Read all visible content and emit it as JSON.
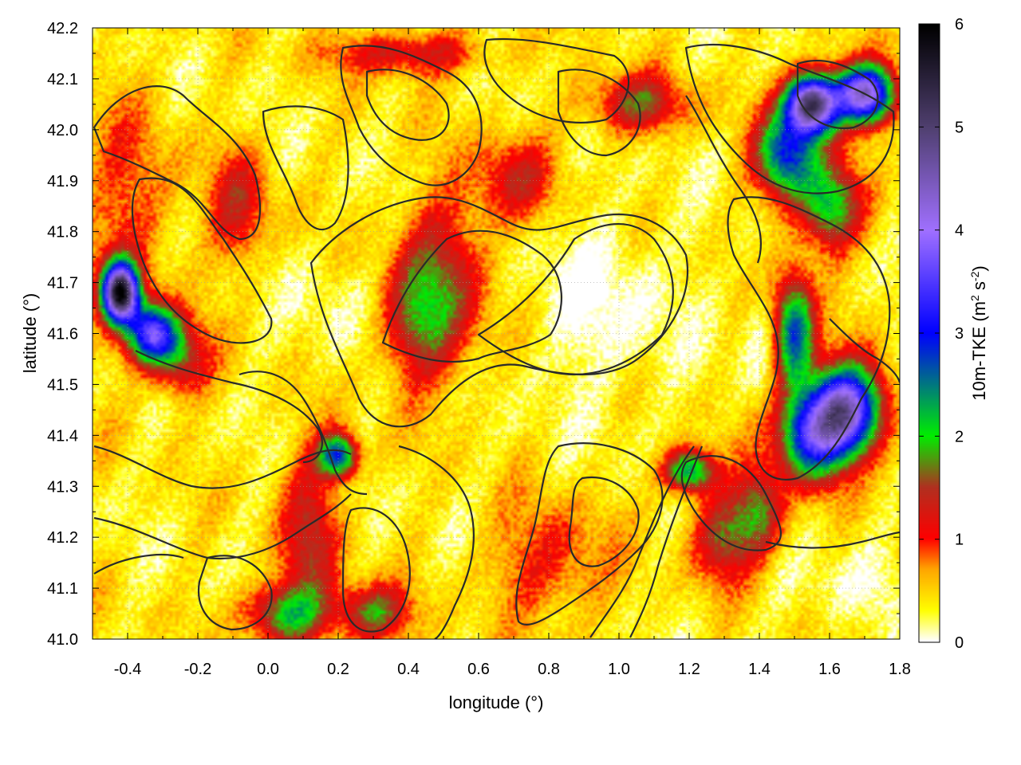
{
  "chart_data": {
    "type": "heatmap",
    "title": "",
    "xlabel": "longitude (°)",
    "ylabel": "latitude (°)",
    "xlim": [
      -0.5,
      1.8
    ],
    "ylim": [
      41.0,
      42.2
    ],
    "x_ticks": [
      "-0.4",
      "-0.2",
      "0.0",
      "0.2",
      "0.4",
      "0.6",
      "0.8",
      "1.0",
      "1.2",
      "1.4",
      "1.6",
      "1.8"
    ],
    "y_ticks": [
      "41.0",
      "41.1",
      "41.2",
      "41.3",
      "41.4",
      "41.5",
      "41.6",
      "41.7",
      "41.8",
      "41.9",
      "42.0",
      "42.1",
      "42.2"
    ],
    "grid": true,
    "colorbar": {
      "label": "10m-TKE (m² s⁻²)",
      "label_text": "10m-TKE (m",
      "label_sup1": "2",
      "label_mid": " s",
      "label_sup2": "-2",
      "label_end": ")",
      "range": [
        0,
        6
      ],
      "ticks": [
        "0",
        "1",
        "2",
        "3",
        "4",
        "5",
        "6"
      ],
      "stops": [
        {
          "value": 0.0,
          "color": "#ffffff"
        },
        {
          "value": 0.3,
          "color": "#ffff00"
        },
        {
          "value": 0.7,
          "color": "#ffa500"
        },
        {
          "value": 1.0,
          "color": "#ff0000"
        },
        {
          "value": 1.5,
          "color": "#b03020"
        },
        {
          "value": 2.0,
          "color": "#00ee00"
        },
        {
          "value": 3.0,
          "color": "#0000ff"
        },
        {
          "value": 4.0,
          "color": "#a070ff"
        },
        {
          "value": 5.0,
          "color": "#504070"
        },
        {
          "value": 6.0,
          "color": "#000000"
        }
      ]
    },
    "features": [
      {
        "lon": 0.5,
        "lat": 41.7,
        "value": 1.1,
        "sx": 0.09,
        "sy": 0.12
      },
      {
        "lon": 0.42,
        "lat": 41.62,
        "value": 0.9,
        "sx": 0.07,
        "sy": 0.08
      },
      {
        "lon": -0.08,
        "lat": 41.85,
        "value": 0.9,
        "sx": 0.06,
        "sy": 0.08
      },
      {
        "lon": -0.42,
        "lat": 41.68,
        "value": 5.2,
        "sx": 0.035,
        "sy": 0.04
      },
      {
        "lon": -0.33,
        "lat": 41.6,
        "value": 3.0,
        "sx": 0.05,
        "sy": 0.04
      },
      {
        "lon": -0.25,
        "lat": 41.55,
        "value": 1.2,
        "sx": 0.06,
        "sy": 0.05
      },
      {
        "lon": -0.4,
        "lat": 41.85,
        "value": 0.6,
        "sx": 0.1,
        "sy": 0.15
      },
      {
        "lon": 0.05,
        "lat": 41.05,
        "value": 1.6,
        "sx": 0.08,
        "sy": 0.04
      },
      {
        "lon": 0.12,
        "lat": 41.2,
        "value": 1.0,
        "sx": 0.06,
        "sy": 0.12
      },
      {
        "lon": 0.3,
        "lat": 41.05,
        "value": 1.4,
        "sx": 0.07,
        "sy": 0.04
      },
      {
        "lon": 0.2,
        "lat": 41.36,
        "value": 2.5,
        "sx": 0.04,
        "sy": 0.03
      },
      {
        "lon": 1.55,
        "lat": 42.05,
        "value": 4.8,
        "sx": 0.05,
        "sy": 0.04
      },
      {
        "lon": 1.7,
        "lat": 42.07,
        "value": 4.0,
        "sx": 0.06,
        "sy": 0.04
      },
      {
        "lon": 1.48,
        "lat": 41.95,
        "value": 2.5,
        "sx": 0.06,
        "sy": 0.06
      },
      {
        "lon": 1.6,
        "lat": 41.85,
        "value": 1.8,
        "sx": 0.06,
        "sy": 0.06
      },
      {
        "lon": 1.5,
        "lat": 41.6,
        "value": 2.4,
        "sx": 0.04,
        "sy": 0.08
      },
      {
        "lon": 1.65,
        "lat": 41.45,
        "value": 3.8,
        "sx": 0.07,
        "sy": 0.06
      },
      {
        "lon": 1.55,
        "lat": 41.4,
        "value": 2.6,
        "sx": 0.07,
        "sy": 0.06
      },
      {
        "lon": 1.4,
        "lat": 41.25,
        "value": 1.4,
        "sx": 0.05,
        "sy": 0.06
      },
      {
        "lon": 1.2,
        "lat": 41.33,
        "value": 2.2,
        "sx": 0.05,
        "sy": 0.03
      },
      {
        "lon": 1.3,
        "lat": 41.2,
        "value": 1.2,
        "sx": 0.06,
        "sy": 0.06
      },
      {
        "lon": 1.05,
        "lat": 42.05,
        "value": 1.2,
        "sx": 0.1,
        "sy": 0.04
      },
      {
        "lon": 0.7,
        "lat": 41.9,
        "value": 0.9,
        "sx": 0.08,
        "sy": 0.06
      },
      {
        "lon": 0.4,
        "lat": 42.15,
        "value": 1.0,
        "sx": 0.15,
        "sy": 0.03
      },
      {
        "lon": 0.8,
        "lat": 41.15,
        "value": 0.7,
        "sx": 0.12,
        "sy": 0.08
      },
      {
        "lon": 0.95,
        "lat": 41.65,
        "value": -0.4,
        "sx": 0.15,
        "sy": 0.12
      },
      {
        "lon": 0.15,
        "lat": 41.65,
        "value": -0.2,
        "sx": 0.08,
        "sy": 0.08
      },
      {
        "lon": 1.4,
        "lat": 41.6,
        "value": -0.3,
        "sx": 0.04,
        "sy": 0.08
      },
      {
        "lon": 1.65,
        "lat": 41.1,
        "value": -0.25,
        "sx": 0.12,
        "sy": 0.05
      }
    ]
  }
}
